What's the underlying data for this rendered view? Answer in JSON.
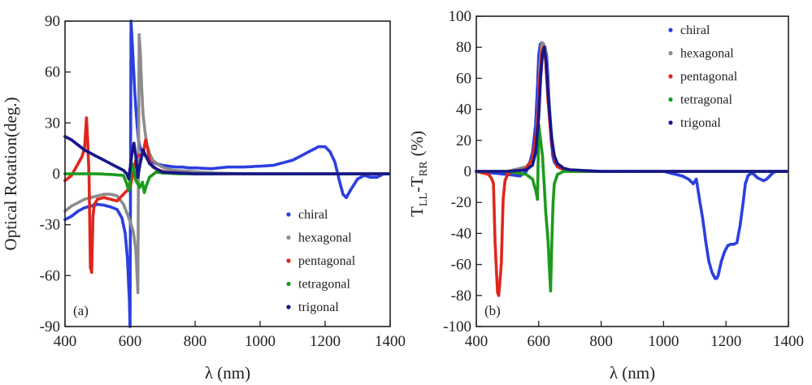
{
  "colors": {
    "chiral": "#2c3fe0",
    "hexagonal": "#8c8c8c",
    "pentagonal": "#e0261c",
    "tetragonal": "#1c9a1c",
    "trigonal": "#16168c"
  },
  "chart_data": [
    {
      "panel": "(a)",
      "type": "scatter",
      "xlabel": "λ (nm)",
      "ylabel": "Optical Rotation(deg.)",
      "xlim": [
        400,
        1400
      ],
      "ylim": [
        -90,
        90
      ],
      "xticks": [
        400,
        600,
        800,
        1000,
        1200,
        1400
      ],
      "yticks": [
        -90,
        -60,
        -30,
        0,
        30,
        60,
        90
      ],
      "legend_position": "lower-right",
      "series": [
        {
          "name": "chiral",
          "color_key": "chiral",
          "x": [
            400,
            420,
            440,
            460,
            480,
            500,
            520,
            540,
            560,
            575,
            585,
            592,
            598,
            600,
            603,
            606,
            610,
            614,
            618,
            622,
            626,
            630,
            640,
            650,
            660,
            680,
            700,
            720,
            740,
            760,
            780,
            800,
            850,
            900,
            950,
            1000,
            1040,
            1080,
            1100,
            1120,
            1140,
            1160,
            1180,
            1200,
            1215,
            1230,
            1245,
            1255,
            1265,
            1280,
            1300,
            1320,
            1340,
            1360,
            1380,
            1400
          ],
          "y": [
            -27,
            -25,
            -22,
            -20,
            -19,
            -18,
            -18.5,
            -19.5,
            -21,
            -26,
            -35,
            -50,
            -75,
            -90,
            90,
            80,
            65,
            50,
            38,
            28,
            20,
            16,
            12,
            10,
            8,
            6,
            5,
            4.5,
            4,
            4,
            3.5,
            3.5,
            3,
            4,
            4,
            4.5,
            5,
            7,
            8,
            10,
            12,
            14,
            16,
            16,
            13,
            7,
            -5,
            -12,
            -14,
            -9,
            -3,
            -1,
            -2,
            -2,
            0,
            0
          ]
        },
        {
          "name": "hexagonal",
          "color_key": "hexagonal",
          "x": [
            400,
            420,
            440,
            460,
            480,
            500,
            520,
            540,
            560,
            580,
            600,
            610,
            618,
            624,
            628,
            632,
            636,
            640,
            646,
            652,
            660,
            670,
            690,
            710,
            740,
            780,
            820,
            860,
            900,
            1000,
            1100,
            1200,
            1300,
            1400
          ],
          "y": [
            -22,
            -19,
            -17,
            -15,
            -14,
            -13,
            -12,
            -12,
            -13,
            -18,
            -28,
            -34,
            -45,
            -70,
            82,
            70,
            50,
            35,
            25,
            17,
            12,
            8,
            5,
            3,
            2,
            1.5,
            1,
            0.5,
            0.3,
            0,
            0,
            0,
            0,
            0
          ]
        },
        {
          "name": "pentagonal",
          "color_key": "pentagonal",
          "x": [
            400,
            420,
            440,
            452,
            460,
            466,
            470,
            474,
            478,
            482,
            486,
            490,
            500,
            520,
            540,
            560,
            580,
            600,
            620,
            640,
            648,
            654,
            660,
            670,
            690,
            710,
            750,
            800,
            900,
            1000,
            1200,
            1400
          ],
          "y": [
            -4,
            -1,
            6,
            10,
            15,
            33,
            18,
            -2,
            -55,
            -58,
            -25,
            -18,
            -15,
            -14,
            -15,
            -16,
            -12,
            -8,
            10,
            12,
            20,
            15,
            8,
            4,
            2,
            1,
            0.5,
            0,
            0,
            0,
            0,
            0
          ]
        },
        {
          "name": "tetragonal",
          "color_key": "tetragonal",
          "x": [
            400,
            450,
            500,
            550,
            580,
            590,
            596,
            600,
            606,
            612,
            618,
            624,
            630,
            638,
            644,
            650,
            660,
            680,
            700,
            750,
            800,
            900,
            1000,
            1200,
            1400
          ],
          "y": [
            0,
            0,
            0,
            -0.5,
            -1,
            -6,
            -10,
            -4,
            6,
            2,
            -4,
            -6,
            -8,
            -5,
            -11,
            -7,
            -2,
            1,
            0.5,
            0,
            0,
            0,
            0,
            0,
            0
          ]
        },
        {
          "name": "trigonal",
          "color_key": "trigonal",
          "x": [
            400,
            420,
            440,
            460,
            480,
            500,
            520,
            540,
            560,
            580,
            590,
            596,
            600,
            606,
            612,
            618,
            624,
            630,
            640,
            650,
            660,
            680,
            700,
            750,
            800,
            900,
            1000,
            1200,
            1400
          ],
          "y": [
            22,
            20,
            17,
            14,
            12,
            10,
            8,
            6,
            4,
            2,
            0,
            -3,
            3,
            12,
            18,
            10,
            -2,
            5,
            14,
            10,
            6,
            3,
            1,
            0.5,
            0,
            0,
            0,
            0,
            0
          ]
        }
      ]
    },
    {
      "panel": "(b)",
      "type": "scatter",
      "xlabel": "λ (nm)",
      "ylabel": "T",
      "ylabel_sub1": "LL",
      "ylabel_mid": "-T",
      "ylabel_sub2": "RR",
      "ylabel_tail": "(%)",
      "xlim": [
        400,
        1400
      ],
      "ylim": [
        -100,
        100
      ],
      "xticks": [
        400,
        600,
        800,
        1000,
        1200,
        1400
      ],
      "yticks": [
        -100,
        -80,
        -60,
        -40,
        -20,
        0,
        20,
        40,
        60,
        80,
        100
      ],
      "legend_position": "top-right",
      "series": [
        {
          "name": "chiral",
          "color_key": "chiral",
          "x": [
            400,
            450,
            500,
            540,
            560,
            570,
            580,
            590,
            596,
            600,
            605,
            610,
            615,
            620,
            625,
            630,
            635,
            640,
            645,
            650,
            660,
            670,
            690,
            710,
            750,
            800,
            900,
            1000,
            1040,
            1060,
            1080,
            1095,
            1105,
            1115,
            1125,
            1135,
            1145,
            1155,
            1165,
            1170,
            1175,
            1185,
            1195,
            1205,
            1215,
            1225,
            1235,
            1245,
            1255,
            1262,
            1270,
            1280,
            1290,
            1300,
            1310,
            1320,
            1330,
            1340,
            1350,
            1360,
            1380,
            1400
          ],
          "y": [
            0,
            -1,
            -2,
            -3,
            0,
            5,
            12,
            30,
            55,
            75,
            82,
            83,
            82,
            80,
            75,
            60,
            35,
            20,
            10,
            6,
            3,
            2,
            1,
            0.5,
            0,
            0,
            0,
            0,
            -2,
            -3,
            -5,
            -8,
            -5,
            -18,
            -30,
            -45,
            -58,
            -65,
            -69,
            -69,
            -67,
            -58,
            -52,
            -48,
            -47,
            -47,
            -46,
            -35,
            -20,
            -8,
            -3,
            -1,
            -2,
            -4,
            -5,
            -6,
            -5,
            -3,
            -1,
            0,
            0,
            0
          ]
        },
        {
          "name": "hexagonal",
          "color_key": "hexagonal",
          "x": [
            400,
            500,
            560,
            580,
            590,
            598,
            604,
            610,
            616,
            622,
            630,
            640,
            650,
            660,
            680,
            700,
            800,
            1000,
            1200,
            1400
          ],
          "y": [
            0,
            0,
            3,
            8,
            18,
            40,
            70,
            83,
            82,
            78,
            55,
            25,
            10,
            5,
            2,
            1,
            0,
            0,
            0,
            0
          ]
        },
        {
          "name": "pentagonal",
          "color_key": "pentagonal",
          "x": [
            400,
            440,
            450,
            455,
            460,
            464,
            468,
            472,
            476,
            480,
            486,
            492,
            500,
            520,
            540,
            560,
            580,
            596,
            604,
            610,
            616,
            622,
            630,
            640,
            650,
            660,
            680,
            700,
            800,
            1000,
            1200,
            1400
          ],
          "y": [
            0,
            -2,
            -5,
            -8,
            -45,
            -62,
            -78,
            -80,
            -70,
            -60,
            -18,
            -6,
            -2,
            0,
            0,
            2,
            8,
            30,
            62,
            77,
            80,
            72,
            45,
            20,
            8,
            3,
            1,
            0,
            0,
            0,
            0,
            0
          ]
        },
        {
          "name": "tetragonal",
          "color_key": "tetragonal",
          "x": [
            400,
            500,
            560,
            580,
            590,
            596,
            600,
            606,
            612,
            618,
            622,
            626,
            630,
            634,
            638,
            642,
            646,
            650,
            660,
            680,
            700,
            800,
            1000,
            1200,
            1400
          ],
          "y": [
            0,
            0,
            -2,
            -5,
            -12,
            -18,
            30,
            20,
            10,
            -10,
            -25,
            -35,
            -45,
            -62,
            -77,
            -45,
            -20,
            -8,
            -2,
            0,
            0,
            0,
            0,
            0,
            0
          ]
        },
        {
          "name": "trigonal",
          "color_key": "trigonal",
          "x": [
            400,
            500,
            560,
            580,
            590,
            600,
            606,
            612,
            618,
            624,
            630,
            636,
            642,
            650,
            660,
            680,
            700,
            800,
            1000,
            1200,
            1400
          ],
          "y": [
            0,
            0,
            1,
            4,
            12,
            35,
            60,
            75,
            80,
            70,
            50,
            35,
            20,
            10,
            5,
            2,
            1,
            0,
            0,
            0,
            0
          ]
        }
      ]
    }
  ]
}
